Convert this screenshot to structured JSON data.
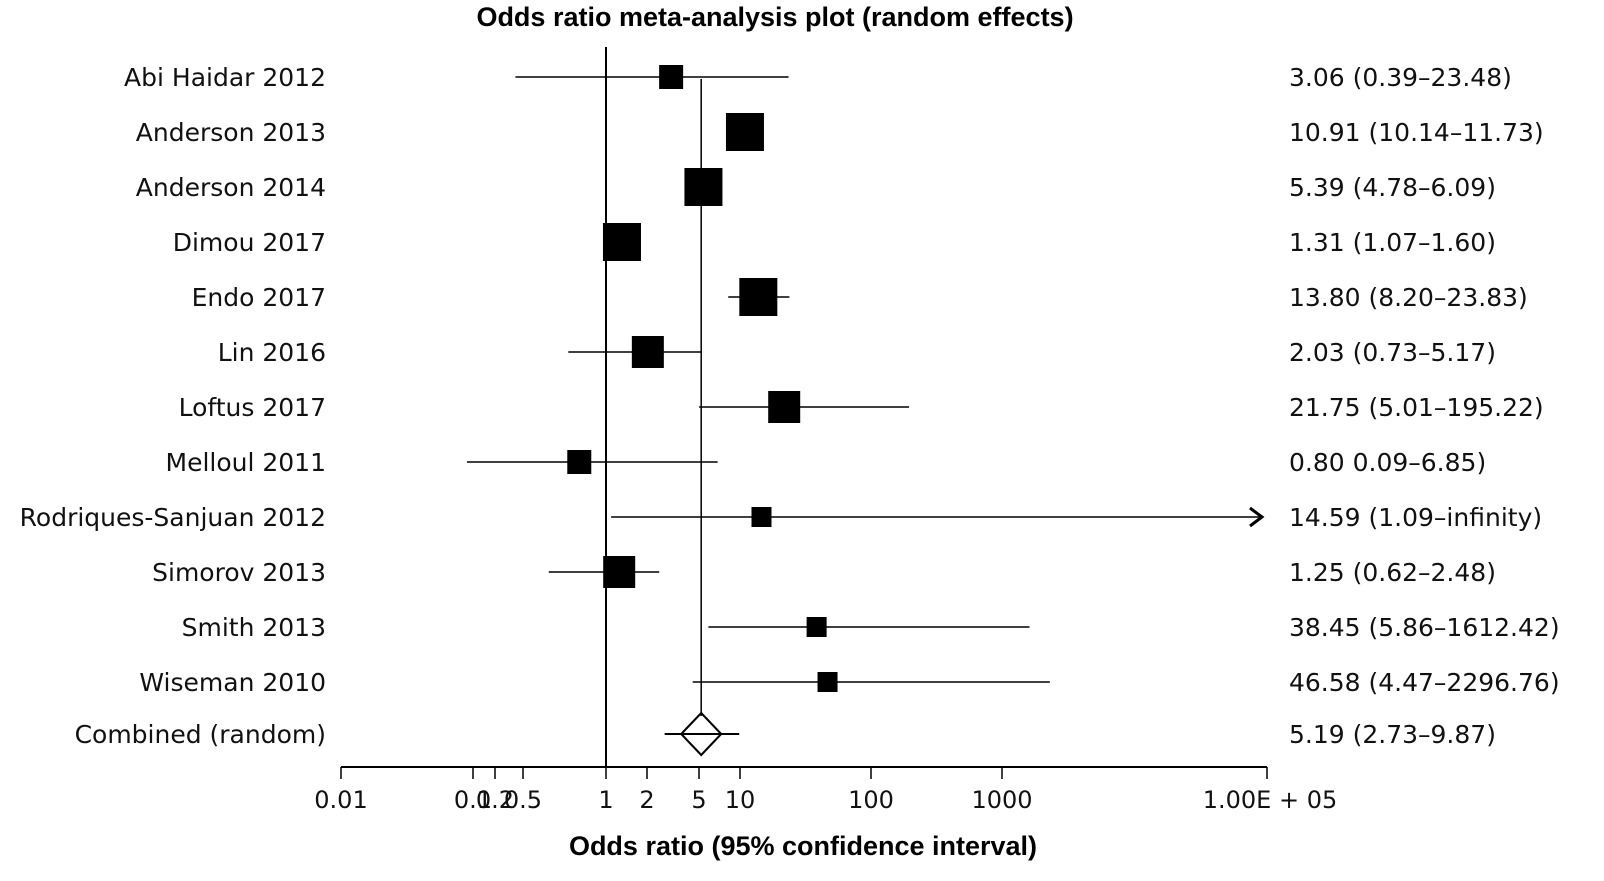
{
  "chart_data": {
    "type": "forest",
    "title": "Odds ratio meta-analysis plot (random effects)",
    "xlabel": "Odds ratio (95% confidence interval)",
    "xscale": "log",
    "xlim": [
      0.01,
      100000
    ],
    "reference_lines": [
      1,
      5.19
    ],
    "ticks": [
      {
        "value": 0.01,
        "label": "0.01"
      },
      {
        "value": 0.1,
        "label": "0.1"
      },
      {
        "value": 0.2,
        "label": "0.2"
      },
      {
        "value": 0.5,
        "label": "0.5"
      },
      {
        "value": 1,
        "label": "1"
      },
      {
        "value": 2,
        "label": "2"
      },
      {
        "value": 5,
        "label": "5"
      },
      {
        "value": 10,
        "label": "10"
      },
      {
        "value": 100,
        "label": "100"
      },
      {
        "value": 1000,
        "label": "1000"
      },
      {
        "value": 100000,
        "label": "1.00E + 05"
      }
    ],
    "studies": [
      {
        "name": "Abi Haidar 2012",
        "or": 3.06,
        "lower": 0.39,
        "upper": 23.48,
        "label": "3.06 (0.39–23.48)",
        "weight": "small"
      },
      {
        "name": "Anderson 2013",
        "or": 10.91,
        "lower": 10.14,
        "upper": 11.73,
        "label": "10.91 (10.14–11.73)",
        "weight": "large"
      },
      {
        "name": "Anderson 2014",
        "or": 5.39,
        "lower": 4.78,
        "upper": 6.09,
        "label": "5.39 (4.78–6.09)",
        "weight": "large"
      },
      {
        "name": "Dimou 2017",
        "or": 1.31,
        "lower": 1.07,
        "upper": 1.6,
        "label": "1.31 (1.07–1.60)",
        "weight": "large"
      },
      {
        "name": "Endo 2017",
        "or": 13.8,
        "lower": 8.2,
        "upper": 23.83,
        "label": "13.80 (8.20–23.83)",
        "weight": "large"
      },
      {
        "name": "Lin 2016",
        "or": 2.03,
        "lower": 0.73,
        "upper": 5.17,
        "label": "2.03 (0.73–5.17)",
        "weight": "medium"
      },
      {
        "name": "Loftus 2017",
        "or": 21.75,
        "lower": 5.01,
        "upper": 195.22,
        "label": "21.75 (5.01–195.22)",
        "weight": "medium"
      },
      {
        "name": "Melloul 2011",
        "or": 0.8,
        "lower": 0.09,
        "upper": 6.85,
        "label": "0.80 0.09–6.85)",
        "weight": "small"
      },
      {
        "name": "Rodriques-Sanjuan 2012",
        "or": 14.59,
        "lower": 1.09,
        "upper": "infinity",
        "label": "14.59 (1.09–infinity)",
        "weight": "tiny"
      },
      {
        "name": "Simorov 2013",
        "or": 1.25,
        "lower": 0.62,
        "upper": 2.48,
        "label": "1.25 (0.62–2.48)",
        "weight": "medium"
      },
      {
        "name": "Smith 2013",
        "or": 38.45,
        "lower": 5.86,
        "upper": 1612.42,
        "label": "38.45 (5.86–1612.42)",
        "weight": "tiny"
      },
      {
        "name": "Wiseman 2010",
        "or": 46.58,
        "lower": 4.47,
        "upper": 2296.76,
        "label": "46.58 (4.47–2296.76)",
        "weight": "tiny"
      }
    ],
    "combined": {
      "name": "Combined (random)",
      "or": 5.19,
      "lower": 2.73,
      "upper": 9.87,
      "label": "5.19 (2.73–9.87)"
    }
  }
}
